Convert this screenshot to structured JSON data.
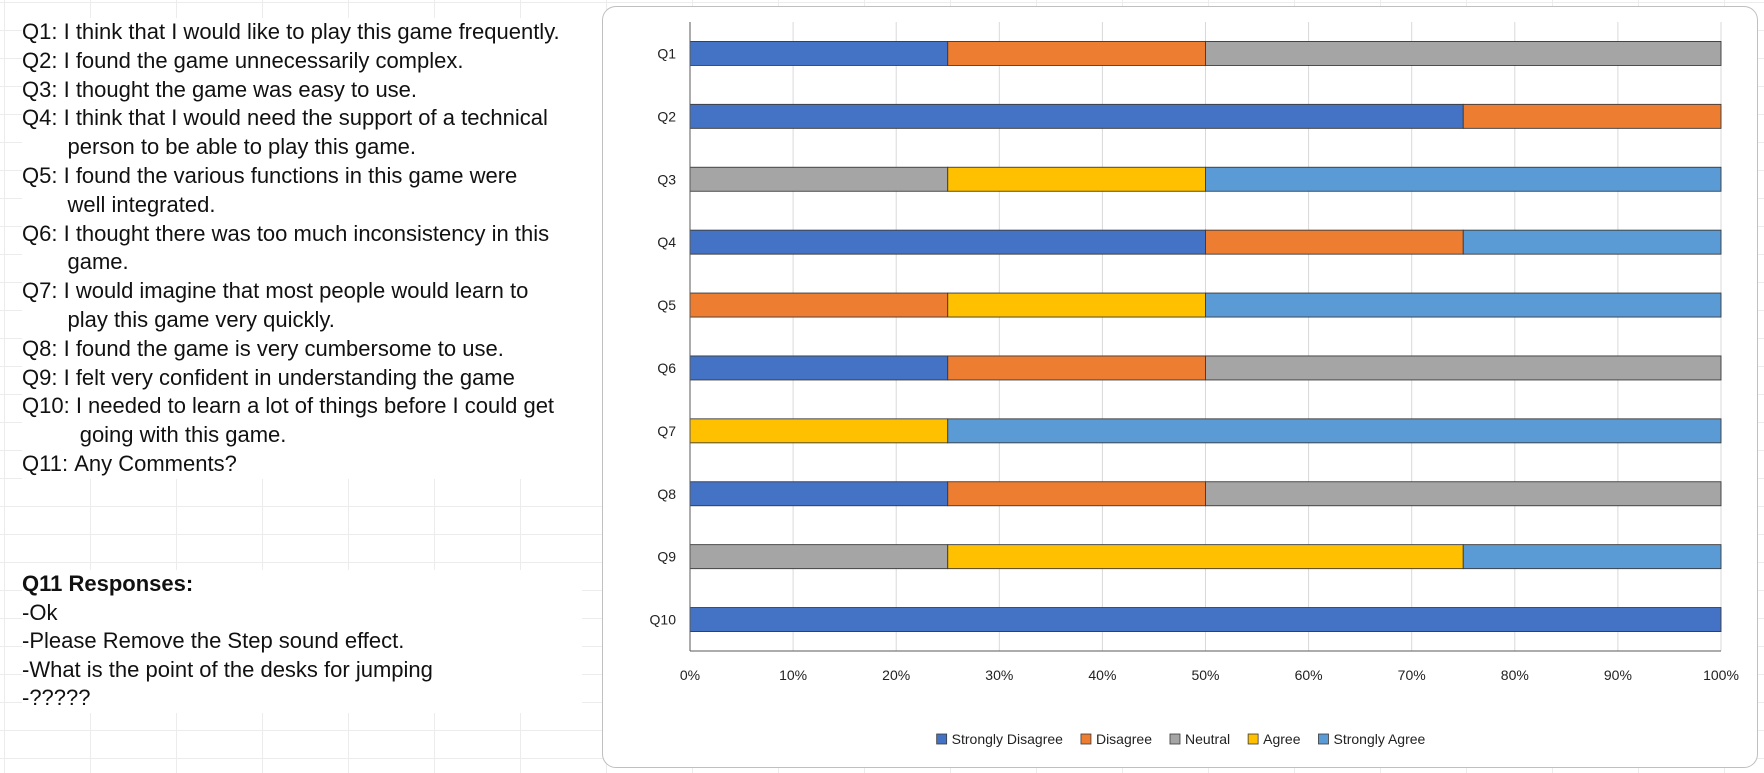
{
  "questions": [
    {
      "id": "Q1:",
      "lines": [
        "I think that I would like to play this game frequently."
      ]
    },
    {
      "id": "Q2:",
      "lines": [
        "I found the game unnecessarily complex."
      ]
    },
    {
      "id": "Q3:",
      "lines": [
        "I thought the game was easy to use."
      ]
    },
    {
      "id": "Q4:",
      "lines": [
        "I think that I would need the support of a technical",
        "person to be able to play this game."
      ]
    },
    {
      "id": "Q5:",
      "lines": [
        "I found the various functions in this game were",
        "well integrated."
      ]
    },
    {
      "id": "Q6:",
      "lines": [
        "I thought there was too much inconsistency in this",
        "game."
      ]
    },
    {
      "id": "Q7:",
      "lines": [
        "I would imagine that most people would learn to",
        "play this game very quickly."
      ]
    },
    {
      "id": "Q8:",
      "lines": [
        "I found the game is very cumbersome to use."
      ]
    },
    {
      "id": "Q9:",
      "lines": [
        "I felt very confident in understanding the game"
      ]
    },
    {
      "id": "Q10:",
      "lines": [
        "I needed to learn a lot of things before I could get",
        "going with this game."
      ]
    },
    {
      "id": "Q11:",
      "lines": [
        "Any Comments?"
      ]
    }
  ],
  "responses": {
    "title": "Q11 Responses:",
    "items": [
      "-Ok",
      "-Please Remove the Step sound effect.",
      "-What is the point of the desks for jumping",
      "-?????"
    ]
  },
  "chart_data": {
    "type": "bar",
    "orientation": "horizontal",
    "stacked": "percent",
    "categories": [
      "Q1",
      "Q2",
      "Q3",
      "Q4",
      "Q5",
      "Q6",
      "Q7",
      "Q8",
      "Q9",
      "Q10"
    ],
    "series": [
      {
        "name": "Strongly Disagree",
        "color": "#4472C4",
        "values": [
          25,
          75,
          0,
          50,
          0,
          25,
          0,
          25,
          0,
          100
        ]
      },
      {
        "name": "Disagree",
        "color": "#ED7D31",
        "values": [
          25,
          25,
          0,
          25,
          25,
          25,
          0,
          25,
          0,
          0
        ]
      },
      {
        "name": "Neutral",
        "color": "#A5A5A5",
        "values": [
          50,
          0,
          25,
          0,
          0,
          50,
          0,
          50,
          25,
          0
        ]
      },
      {
        "name": "Agree",
        "color": "#FFC000",
        "values": [
          0,
          0,
          25,
          0,
          25,
          0,
          25,
          0,
          50,
          0
        ]
      },
      {
        "name": "Strongly Agree",
        "color": "#5B9BD5",
        "values": [
          0,
          0,
          50,
          25,
          50,
          0,
          75,
          0,
          25,
          0
        ]
      }
    ],
    "x_ticks": [
      "0%",
      "10%",
      "20%",
      "30%",
      "40%",
      "50%",
      "60%",
      "70%",
      "80%",
      "90%",
      "100%"
    ],
    "xlim": [
      0,
      100
    ],
    "title": "",
    "xlabel": "",
    "ylabel": "",
    "grid": true,
    "legend_position": "bottom"
  }
}
